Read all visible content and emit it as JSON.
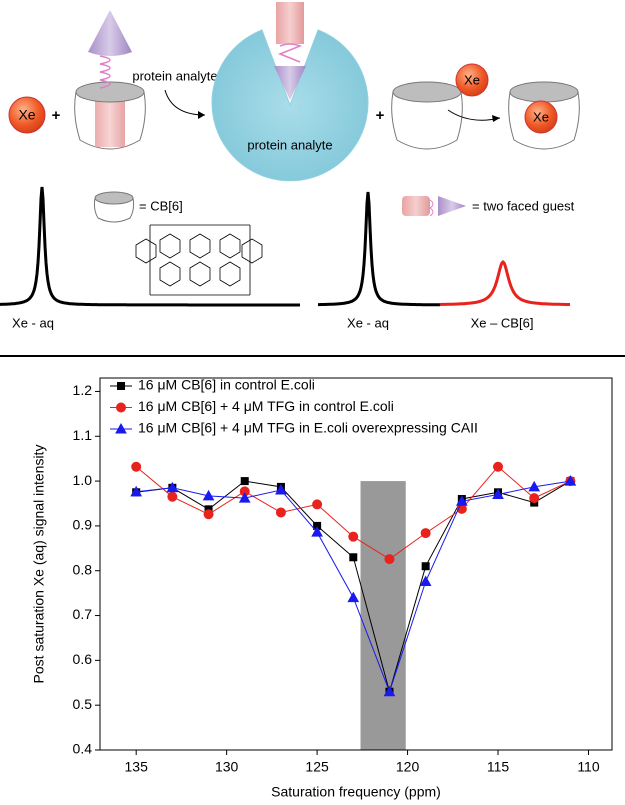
{
  "diagram": {
    "xe_free": "Xe",
    "plus_1": "+",
    "arrow_label": "protein analyte",
    "protein_label": "protein analyte",
    "plus_2": "+",
    "xe_incoming": "Xe",
    "xe_bound": "Xe",
    "cb6_key": "= CB[6]",
    "guest_key": "=   two faced guest",
    "spectrum_left_label": "Xe - aq",
    "spectrum_right_aq_label": "Xe - aq",
    "spectrum_right_cb6_label": "Xe – CB[6]"
  },
  "chart_data": {
    "type": "line",
    "x_label": "Saturation frequency (ppm)",
    "y_label": "Post saturation Xe (aq) signal intensity",
    "x": [
      135,
      133,
      131,
      129,
      127,
      125,
      123,
      121,
      119,
      117,
      115,
      113,
      111
    ],
    "series": [
      {
        "name": "16 μM CB[6] in control E.coli",
        "color": "#000000",
        "marker": "square",
        "values": [
          0.975,
          0.985,
          0.937,
          1.0,
          0.987,
          0.9,
          0.83,
          0.53,
          0.81,
          0.96,
          0.975,
          0.952,
          1.0
        ]
      },
      {
        "name": "16 μM CB[6] + 4 μM TFG in control E.coli",
        "color": "#e8221c",
        "marker": "circle",
        "values": [
          1.032,
          0.965,
          0.926,
          0.977,
          0.93,
          0.948,
          0.876,
          0.826,
          0.884,
          0.938,
          1.032,
          0.962,
          1.0
        ]
      },
      {
        "name": "16 μM CB[6] + 4 μM TFG in E.coli overexpressing CAII",
        "color": "#1a1aef",
        "marker": "triangle",
        "values": [
          0.976,
          0.985,
          0.967,
          0.962,
          0.98,
          0.886,
          0.74,
          0.53,
          0.776,
          0.955,
          0.97,
          0.987,
          1.0
        ]
      }
    ],
    "shaded_region": {
      "xlim": [
        122.6,
        120.1
      ],
      "ylim": [
        0.4,
        1.0
      ],
      "color": "#999999"
    },
    "xlim": [
      137,
      108.7
    ],
    "ylim": [
      0.4,
      1.23
    ],
    "xticks": [
      135,
      130,
      125,
      120,
      115,
      110
    ],
    "yticks": [
      0.4,
      0.5,
      0.6,
      0.7,
      0.8,
      0.9,
      {
        "value": 1.0,
        "label": "1.0"
      },
      1.1,
      1.2
    ],
    "legend": "upper left"
  }
}
